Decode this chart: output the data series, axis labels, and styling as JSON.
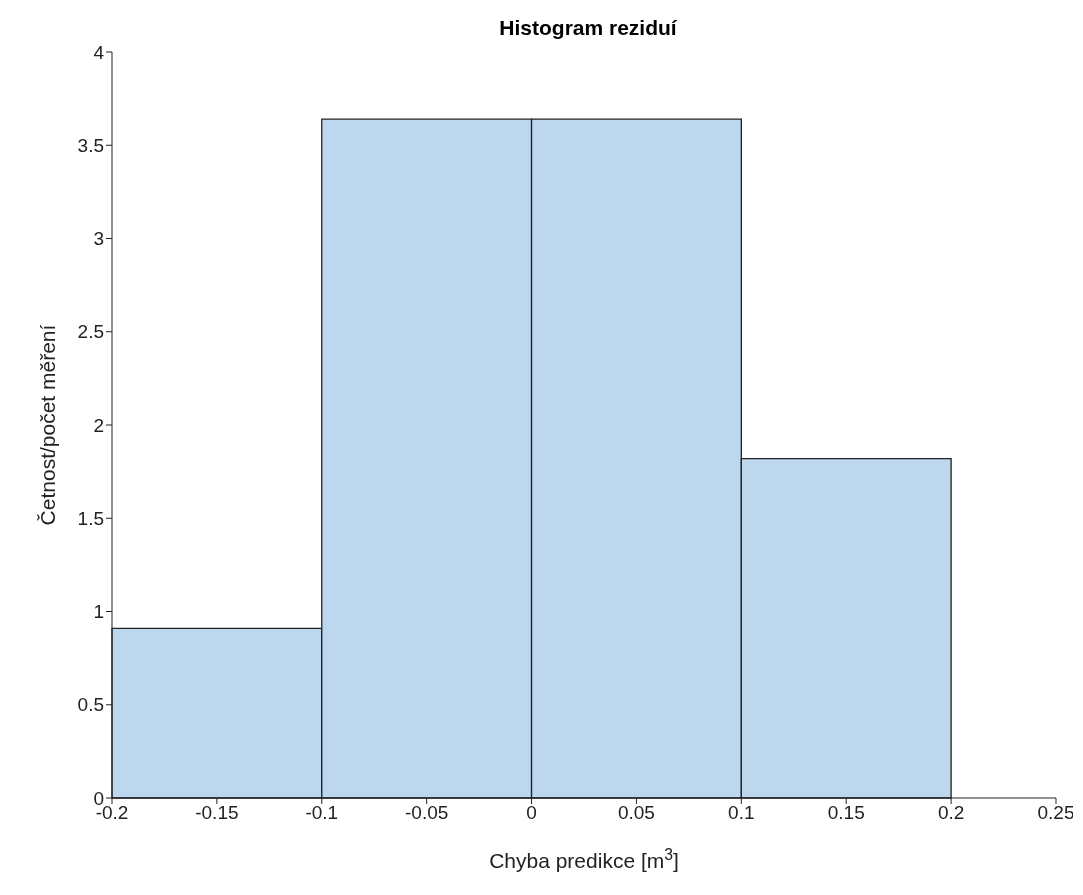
{
  "chart_data": {
    "type": "histogram",
    "title": "Histogram reziduí",
    "xlabel": "Chyba predikce  [m$^{3}$]",
    "ylabel": "Četnost/počet měření",
    "bins": [
      -0.2,
      -0.1,
      0,
      0.1,
      0.2
    ],
    "values": [
      0.91,
      3.64,
      3.64,
      1.82
    ],
    "color": "#bdd7ee",
    "xlim": [
      -0.2,
      0.25
    ],
    "xticks": [
      -0.2,
      -0.15,
      -0.1,
      -0.05,
      0,
      0.05,
      0.1,
      0.15,
      0.2,
      0.25
    ],
    "ylim": [
      0,
      4
    ],
    "yticks": [
      0,
      0.5,
      1,
      1.5,
      2,
      2.5,
      3,
      3.5,
      4
    ],
    "grid": false
  }
}
